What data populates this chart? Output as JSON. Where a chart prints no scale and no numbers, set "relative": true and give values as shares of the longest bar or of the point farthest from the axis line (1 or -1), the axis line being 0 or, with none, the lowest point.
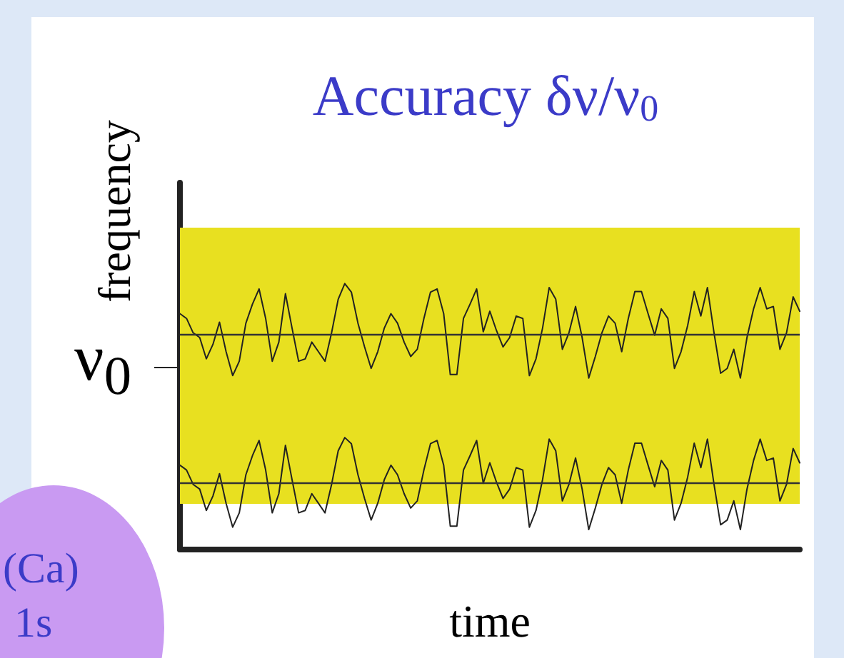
{
  "chart_data": {
    "type": "line",
    "title": "Accuracy δν/ν$_{0}$",
    "xlabel": "time",
    "ylabel": "frequency",
    "annotations": [
      "(Ca)",
      "1s",
      "ν$_{0}$"
    ],
    "relative": true,
    "line_style": "solid",
    "categories": [
      null,
      null,
      null,
      null,
      null,
      null,
      null,
      null,
      null,
      null,
      null,
      null,
      null,
      null,
      null,
      null,
      null,
      null,
      null,
      null,
      null,
      null,
      null,
      null,
      null,
      null,
      null,
      null,
      null,
      null,
      null,
      null,
      null,
      null,
      null,
      null,
      null,
      null,
      null,
      null,
      null,
      null,
      null,
      null,
      null,
      null,
      null,
      null,
      null,
      null,
      null,
      null,
      null,
      null,
      null,
      null,
      null,
      null,
      null,
      null,
      null,
      null,
      null,
      null,
      null,
      null,
      null,
      null,
      null,
      null,
      null,
      null,
      null,
      null,
      null,
      null,
      null,
      null,
      null,
      null,
      null,
      null,
      null,
      null,
      null,
      null,
      null,
      null,
      null,
      null,
      null,
      null,
      null,
      null,
      null
    ],
    "series": [
      {
        "color": "#222222",
        "values": [
          0.887,
          0.869,
          0.815,
          0.797,
          0.717,
          0.771,
          0.855,
          0.744,
          0.654,
          0.708,
          0.851,
          0.923,
          0.98,
          0.869,
          0.708,
          0.78,
          0.962,
          0.833,
          0.708,
          0.717,
          0.78,
          0.744,
          0.708,
          0.815,
          0.941,
          1.0,
          0.968,
          0.851,
          0.762,
          0.681,
          0.744,
          0.833,
          0.887,
          0.851,
          0.78,
          0.726,
          0.753,
          0.869,
          0.968,
          0.98,
          0.887,
          0.658,
          0.658,
          0.869,
          0.923,
          0.98,
          0.819,
          0.896,
          0.824,
          0.762,
          0.797,
          0.878,
          0.869,
          0.654,
          0.717,
          0.833,
          0.985,
          0.941,
          0.753,
          0.815,
          0.914,
          0.797,
          0.645,
          0.726,
          0.815,
          0.878,
          0.851,
          0.744,
          0.869,
          0.97,
          0.97,
          0.887,
          0.806,
          0.905,
          0.869,
          0.681,
          0.744,
          0.842,
          0.97,
          0.878,
          0.985,
          0.815,
          0.663,
          0.681,
          0.753,
          0.645,
          0.797,
          0.905,
          0.985,
          0.905,
          0.914,
          0.753,
          0.815,
          0.95,
          0.896
        ]
      },
      {
        "color": "#222222",
        "values": [
          0.317,
          0.299,
          0.245,
          0.227,
          0.147,
          0.201,
          0.285,
          0.174,
          0.084,
          0.138,
          0.281,
          0.353,
          0.41,
          0.299,
          0.138,
          0.21,
          0.392,
          0.263,
          0.138,
          0.147,
          0.21,
          0.174,
          0.138,
          0.245,
          0.371,
          0.421,
          0.398,
          0.281,
          0.192,
          0.111,
          0.174,
          0.263,
          0.317,
          0.281,
          0.21,
          0.156,
          0.183,
          0.299,
          0.398,
          0.41,
          0.317,
          0.088,
          0.088,
          0.299,
          0.353,
          0.41,
          0.249,
          0.326,
          0.254,
          0.192,
          0.227,
          0.308,
          0.299,
          0.084,
          0.147,
          0.263,
          0.415,
          0.371,
          0.183,
          0.245,
          0.344,
          0.227,
          0.075,
          0.156,
          0.245,
          0.308,
          0.281,
          0.174,
          0.299,
          0.4,
          0.4,
          0.317,
          0.236,
          0.335,
          0.299,
          0.111,
          0.174,
          0.272,
          0.4,
          0.308,
          0.415,
          0.245,
          0.093,
          0.111,
          0.183,
          0.075,
          0.227,
          0.335,
          0.415,
          0.335,
          0.344,
          0.183,
          0.245,
          0.38,
          0.326
        ]
      }
    ],
    "ref_lines": [
      {
        "axis": "y",
        "value": 0.815,
        "color": "#333333"
      },
      {
        "axis": "y",
        "value": 0.246,
        "color": "#333333"
      }
    ],
    "bands": [
      {
        "axis": "y",
        "from": 0.172,
        "to": 1.21,
        "color": "#e8e020"
      }
    ]
  }
}
